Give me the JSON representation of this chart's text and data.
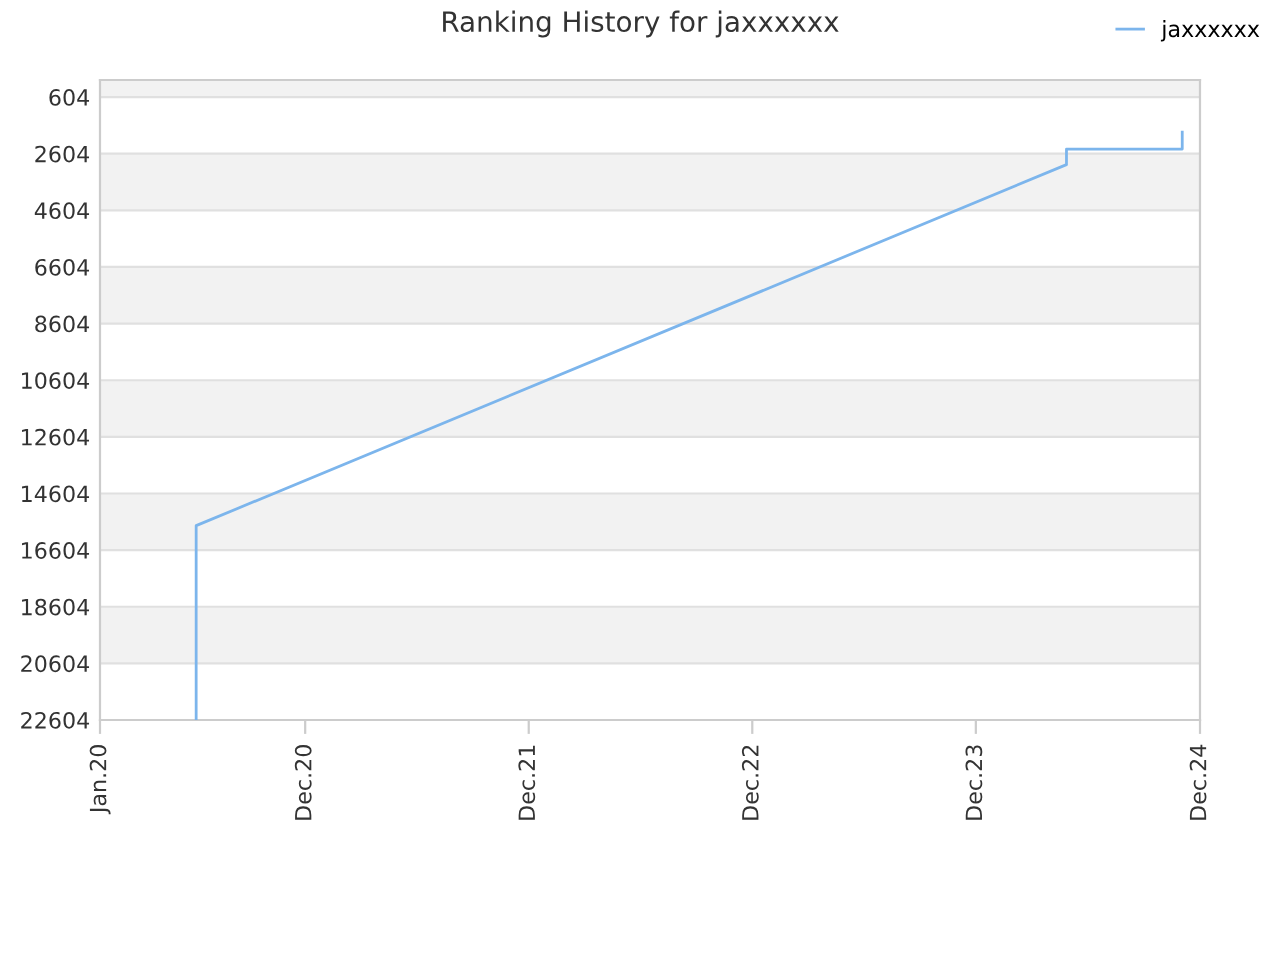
{
  "chart_data": {
    "type": "step",
    "title": "Ranking History for jaxxxxxx",
    "x": [
      "2020-06-06",
      "2020-06-06",
      "2024-04-27",
      "2024-04-27",
      "2024-11-02",
      "2024-11-02"
    ],
    "series": [
      {
        "name": "jaxxxxxx",
        "color": "#7cb5ec",
        "values": [
          22604,
          15740,
          2990,
          2440,
          2440,
          1840
        ]
      }
    ],
    "xlim": [
      "2020-01-01",
      "2024-12-01"
    ],
    "xticks": [
      {
        "value": "2020-01-01",
        "label": "Jan.20"
      },
      {
        "value": "2020-12-01",
        "label": "Dec.20"
      },
      {
        "value": "2021-12-01",
        "label": "Dec.21"
      },
      {
        "value": "2022-12-01",
        "label": "Dec.22"
      },
      {
        "value": "2023-12-01",
        "label": "Dec.23"
      },
      {
        "value": "2024-12-01",
        "label": "Dec.24"
      }
    ],
    "ylim": [
      22604,
      0
    ],
    "yticks": [
      604,
      2604,
      4604,
      6604,
      8604,
      10604,
      12604,
      14604,
      16604,
      18604,
      20604,
      22604
    ],
    "grid": "y",
    "legend": "top right",
    "marker": "none",
    "line_style": "solid"
  }
}
